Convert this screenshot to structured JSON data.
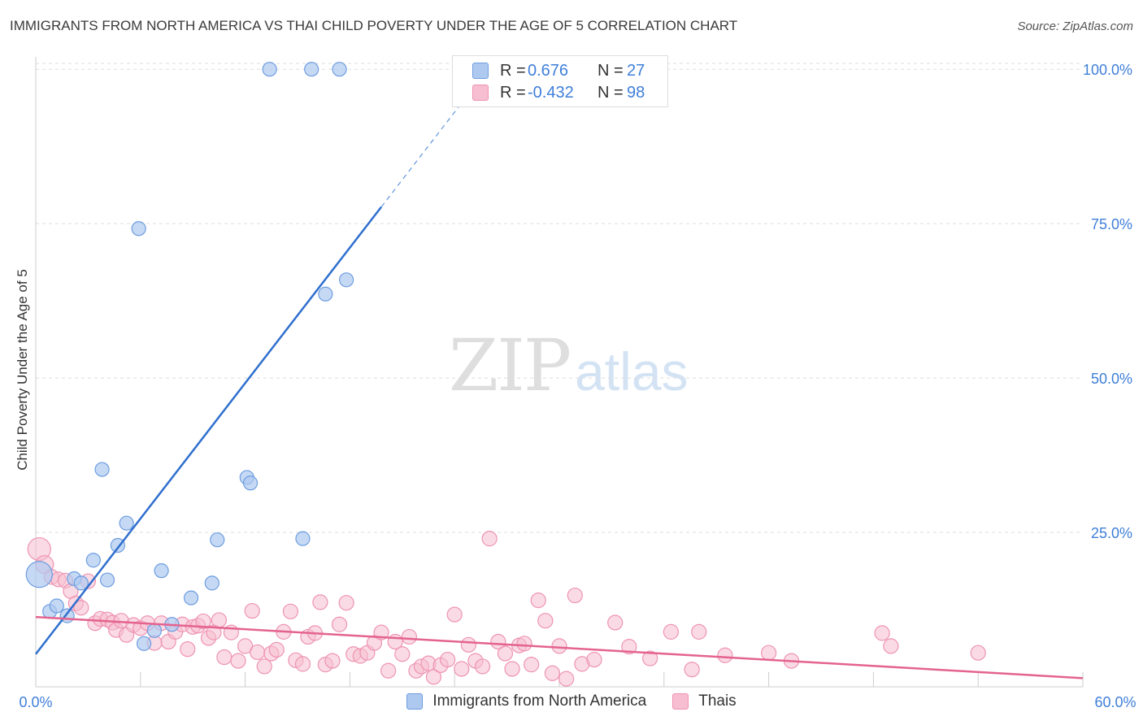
{
  "header": {
    "title": "IMMIGRANTS FROM NORTH AMERICA VS THAI CHILD POVERTY UNDER THE AGE OF 5 CORRELATION CHART",
    "source": "Source: ZipAtlas.com"
  },
  "watermark": {
    "zip": "ZIP",
    "atlas": "atlas"
  },
  "legend_top": {
    "rows": [
      {
        "r_label": "R =",
        "r_value": "0.676",
        "n_label": "N =",
        "n_value": "27"
      },
      {
        "r_label": "R =",
        "r_value": "-0.432",
        "n_label": "N =",
        "n_value": "98"
      }
    ]
  },
  "legend_bottom": {
    "items": [
      {
        "label": "Immigrants from North America"
      },
      {
        "label": "Thais"
      }
    ]
  },
  "colors": {
    "blue_fill": "#aec9ef",
    "blue_stroke": "#6d9de0",
    "blue_line": "#2f6fce",
    "pink_fill": "#f6bed0",
    "pink_stroke": "#ee93b1",
    "pink_line": "#e4638f",
    "tick_text": "#3f7fd9",
    "grid": "#dddddd"
  },
  "chart_data": {
    "type": "scatter",
    "title": "IMMIGRANTS FROM NORTH AMERICA VS THAI CHILD POVERTY UNDER THE AGE OF 5 CORRELATION CHART",
    "xlabel": "",
    "ylabel": "Child Poverty Under the Age of 5",
    "xlim": [
      0,
      60
    ],
    "ylim": [
      0,
      102
    ],
    "x_tick_labels": [
      "0.0%",
      "60.0%"
    ],
    "y_ticks": [
      25,
      50,
      75,
      100
    ],
    "y_tick_labels": [
      "25.0%",
      "50.0%",
      "75.0%",
      "100.0%"
    ],
    "grid": true,
    "legend_position": "top-center",
    "series": [
      {
        "name": "Immigrants from North America",
        "color": "#aec9ef",
        "r": 0.676,
        "n": 27,
        "trend": {
          "x0": 0,
          "y0": 5.3,
          "x1": 19.8,
          "y1": 77.7,
          "dash_to_x": 24.8
        },
        "points": [
          [
            0.2,
            18.2
          ],
          [
            0.8,
            12.2
          ],
          [
            1.2,
            13.1
          ],
          [
            1.8,
            11.5
          ],
          [
            2.2,
            17.5
          ],
          [
            2.6,
            16.8
          ],
          [
            3.3,
            20.5
          ],
          [
            3.8,
            35.2
          ],
          [
            4.1,
            17.3
          ],
          [
            4.7,
            22.9
          ],
          [
            5.2,
            26.5
          ],
          [
            5.9,
            74.2
          ],
          [
            6.2,
            7.0
          ],
          [
            6.8,
            9.1
          ],
          [
            7.2,
            18.8
          ],
          [
            7.8,
            10.1
          ],
          [
            8.9,
            14.4
          ],
          [
            10.1,
            16.8
          ],
          [
            10.4,
            23.8
          ],
          [
            12.1,
            33.9
          ],
          [
            12.3,
            33.0
          ],
          [
            13.4,
            100.0
          ],
          [
            15.3,
            24.0
          ],
          [
            15.8,
            100.0
          ],
          [
            16.6,
            63.6
          ],
          [
            17.4,
            100.0
          ],
          [
            17.8,
            65.9
          ]
        ]
      },
      {
        "name": "Thais",
        "color": "#f6bed0",
        "r": -0.432,
        "n": 98,
        "trend": {
          "x0": 0,
          "y0": 11.3,
          "x1": 60,
          "y1": 1.4
        },
        "points": [
          [
            0.2,
            22.3
          ],
          [
            0.5,
            19.8
          ],
          [
            0.9,
            17.8
          ],
          [
            1.3,
            17.4
          ],
          [
            1.7,
            17.2
          ],
          [
            2.0,
            15.5
          ],
          [
            2.3,
            13.5
          ],
          [
            2.6,
            12.8
          ],
          [
            3.0,
            17.1
          ],
          [
            3.4,
            10.3
          ],
          [
            3.7,
            11.0
          ],
          [
            4.1,
            10.9
          ],
          [
            4.4,
            10.4
          ],
          [
            4.6,
            9.2
          ],
          [
            4.9,
            10.7
          ],
          [
            5.2,
            8.4
          ],
          [
            5.6,
            10.0
          ],
          [
            6.0,
            9.5
          ],
          [
            6.4,
            10.3
          ],
          [
            6.8,
            7.1
          ],
          [
            7.2,
            10.3
          ],
          [
            7.6,
            7.3
          ],
          [
            8.0,
            8.9
          ],
          [
            8.4,
            10.1
          ],
          [
            8.7,
            6.1
          ],
          [
            9.0,
            9.7
          ],
          [
            9.3,
            9.9
          ],
          [
            9.6,
            10.6
          ],
          [
            9.9,
            7.9
          ],
          [
            10.2,
            8.8
          ],
          [
            10.5,
            10.8
          ],
          [
            10.8,
            4.8
          ],
          [
            11.2,
            8.8
          ],
          [
            11.6,
            4.2
          ],
          [
            12.0,
            6.6
          ],
          [
            12.4,
            12.3
          ],
          [
            12.7,
            5.6
          ],
          [
            13.1,
            3.3
          ],
          [
            13.5,
            5.4
          ],
          [
            13.8,
            6.0
          ],
          [
            14.2,
            8.9
          ],
          [
            14.6,
            12.2
          ],
          [
            14.9,
            4.3
          ],
          [
            15.3,
            3.7
          ],
          [
            15.6,
            8.1
          ],
          [
            16.0,
            8.7
          ],
          [
            16.3,
            13.7
          ],
          [
            16.6,
            3.6
          ],
          [
            17.0,
            4.2
          ],
          [
            17.4,
            10.1
          ],
          [
            17.8,
            13.6
          ],
          [
            18.2,
            5.3
          ],
          [
            18.6,
            5.0
          ],
          [
            19.0,
            5.5
          ],
          [
            19.4,
            7.1
          ],
          [
            19.8,
            8.8
          ],
          [
            20.2,
            2.6
          ],
          [
            20.6,
            7.3
          ],
          [
            21.0,
            5.3
          ],
          [
            21.4,
            8.1
          ],
          [
            21.8,
            2.6
          ],
          [
            22.1,
            3.3
          ],
          [
            22.5,
            3.8
          ],
          [
            22.8,
            1.6
          ],
          [
            23.2,
            3.5
          ],
          [
            23.6,
            4.4
          ],
          [
            24.0,
            11.7
          ],
          [
            24.4,
            2.9
          ],
          [
            24.8,
            6.8
          ],
          [
            25.2,
            4.2
          ],
          [
            25.6,
            3.3
          ],
          [
            26.0,
            24.0
          ],
          [
            26.5,
            7.3
          ],
          [
            26.9,
            5.4
          ],
          [
            27.3,
            2.9
          ],
          [
            27.7,
            6.7
          ],
          [
            28.0,
            7.0
          ],
          [
            28.4,
            3.6
          ],
          [
            28.8,
            14.0
          ],
          [
            29.2,
            10.7
          ],
          [
            29.6,
            2.2
          ],
          [
            30.0,
            6.6
          ],
          [
            30.4,
            1.3
          ],
          [
            30.9,
            14.8
          ],
          [
            31.3,
            3.7
          ],
          [
            32.0,
            4.4
          ],
          [
            33.2,
            10.4
          ],
          [
            34.0,
            6.5
          ],
          [
            35.2,
            4.6
          ],
          [
            36.4,
            8.9
          ],
          [
            37.6,
            2.8
          ],
          [
            38.0,
            8.9
          ],
          [
            39.5,
            5.1
          ],
          [
            42.0,
            5.5
          ],
          [
            43.3,
            4.2
          ],
          [
            48.5,
            8.7
          ],
          [
            49.0,
            6.6
          ],
          [
            54.0,
            5.5
          ]
        ]
      }
    ]
  }
}
